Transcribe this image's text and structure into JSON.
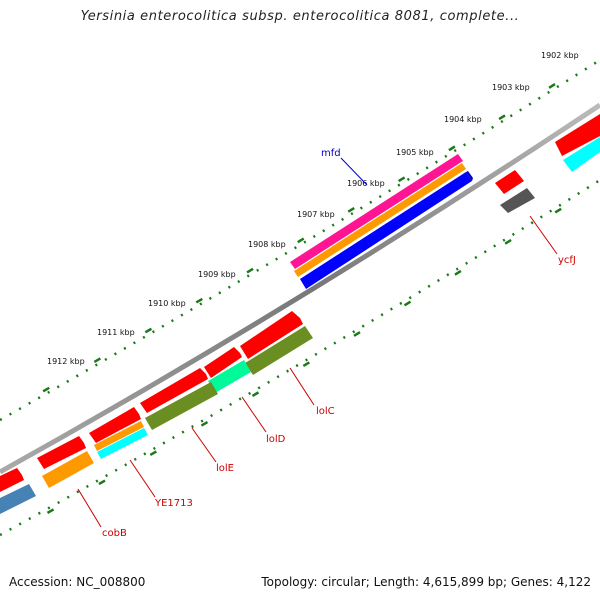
{
  "title": "Yersinia enterocolitica subsp. enterocolitica 8081, complete...",
  "footer": {
    "accession": "Accession: NC_008800",
    "summary": "Topology: circular; Length: 4,615,899 bp; Genes: 4,122"
  },
  "ticks": [
    "1902 kbp",
    "1903 kbp",
    "1904 kbp",
    "1905 kbp",
    "1906 kbp",
    "1907 kbp",
    "1908 kbp",
    "1909 kbp",
    "1910 kbp",
    "1911 kbp",
    "1912 kbp"
  ],
  "gene_labels": {
    "mfd": "mfd",
    "ycfJ": "ycfJ",
    "lolC": "lolC",
    "lolD": "lolD",
    "lolE": "lolE",
    "YE1713": "YE1713",
    "cobB": "cobB"
  },
  "colors": {
    "cds_red": "#ff0000",
    "gene_label_red": "#cc0000",
    "gene_label_blue": "#0000cc",
    "backbone": "#888888",
    "tick_dots": "#1a7a1a",
    "magenta": "#ff1493",
    "orange": "#ff9900",
    "blue": "#0000ff",
    "cyan": "#00ffff",
    "olive": "#6b8e23",
    "teal": "#00fa9a",
    "steelblue": "#4682b4",
    "gray": "#555555"
  }
}
